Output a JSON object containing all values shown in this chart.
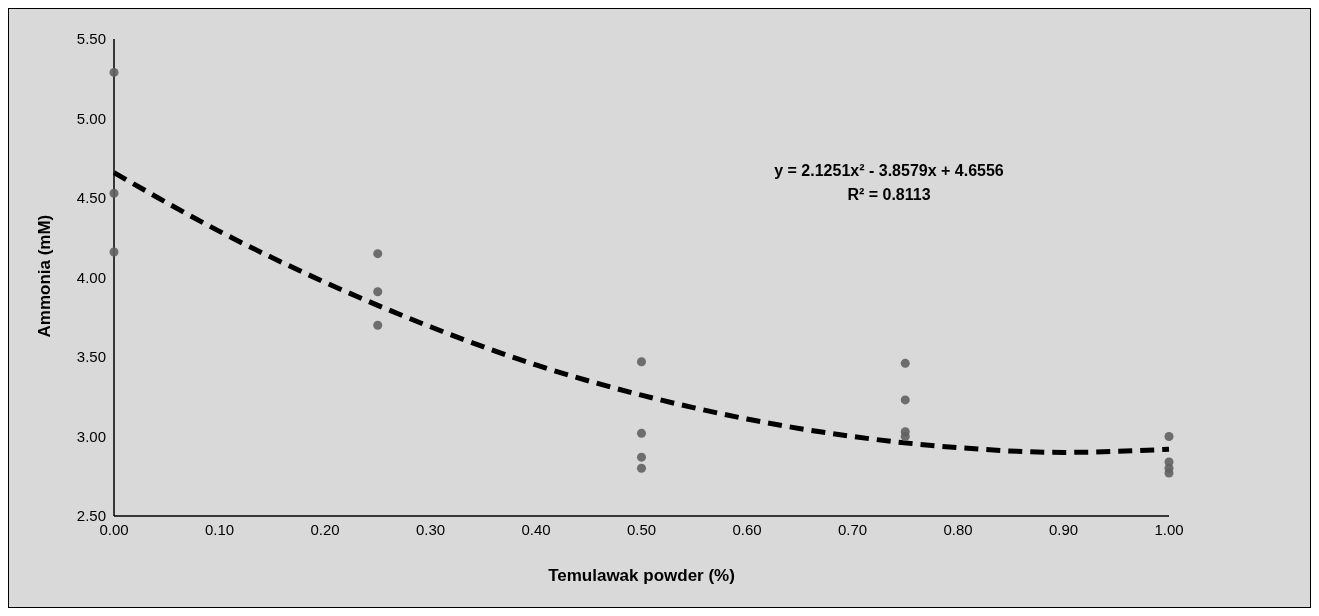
{
  "chart_data": {
    "type": "scatter",
    "xlabel": "Temulawak powder (%)",
    "ylabel": "Ammonia (mM)",
    "xlim": [
      0,
      1
    ],
    "xticks": [
      {
        "value": 0,
        "label": "0.00"
      },
      {
        "value": 0.1,
        "label": "0.10"
      },
      {
        "value": 0.2,
        "label": "0.20"
      },
      {
        "value": 0.3,
        "label": "0.30"
      },
      {
        "value": 0.4,
        "label": "0.40"
      },
      {
        "value": 0.5,
        "label": "0.50"
      },
      {
        "value": 0.6,
        "label": "0.60"
      },
      {
        "value": 0.7,
        "label": "0.70"
      },
      {
        "value": 0.8,
        "label": "0.80"
      },
      {
        "value": 0.9,
        "label": "0.90"
      },
      {
        "value": 1,
        "label": "1.00"
      }
    ],
    "ylim": [
      2.5,
      5.5
    ],
    "yticks": [
      {
        "value": 2.5,
        "label": "2.50"
      },
      {
        "value": 3,
        "label": "3.00"
      },
      {
        "value": 3.5,
        "label": "3.50"
      },
      {
        "value": 4,
        "label": "4.00"
      },
      {
        "value": 4.5,
        "label": "4.50"
      },
      {
        "value": 5,
        "label": "5.00"
      },
      {
        "value": 5.5,
        "label": "5.50"
      }
    ],
    "grid": false,
    "legend": false,
    "marker": "circle",
    "series": [
      {
        "color": "#606060",
        "x": [
          0,
          0,
          0,
          0.25,
          0.25,
          0.25,
          0.5,
          0.5,
          0.5,
          0.5,
          0.75,
          0.75,
          0.75,
          0.75,
          1,
          1,
          1,
          1
        ],
        "values": [
          5.29,
          4.53,
          4.16,
          4.15,
          3.91,
          3.7,
          3.47,
          3.02,
          2.87,
          2.8,
          3.46,
          3.23,
          3.03,
          3.0,
          3.0,
          2.84,
          2.8,
          2.77
        ]
      },
      {
        "type": "line",
        "color": "#000000",
        "line_style": "dashed",
        "marker": "none",
        "x": [
          0,
          0.1,
          0.2,
          0.3,
          0.4,
          0.5,
          0.6,
          0.7,
          0.8,
          0.9,
          1
        ],
        "values": [
          4.66,
          4.29,
          3.97,
          3.69,
          3.45,
          3.26,
          3.11,
          3.0,
          2.93,
          2.9,
          2.92
        ]
      }
    ],
    "annotations": [
      "y = 2.1251x² - 3.8579x + 4.6556\nR² = 0.8113"
    ]
  }
}
